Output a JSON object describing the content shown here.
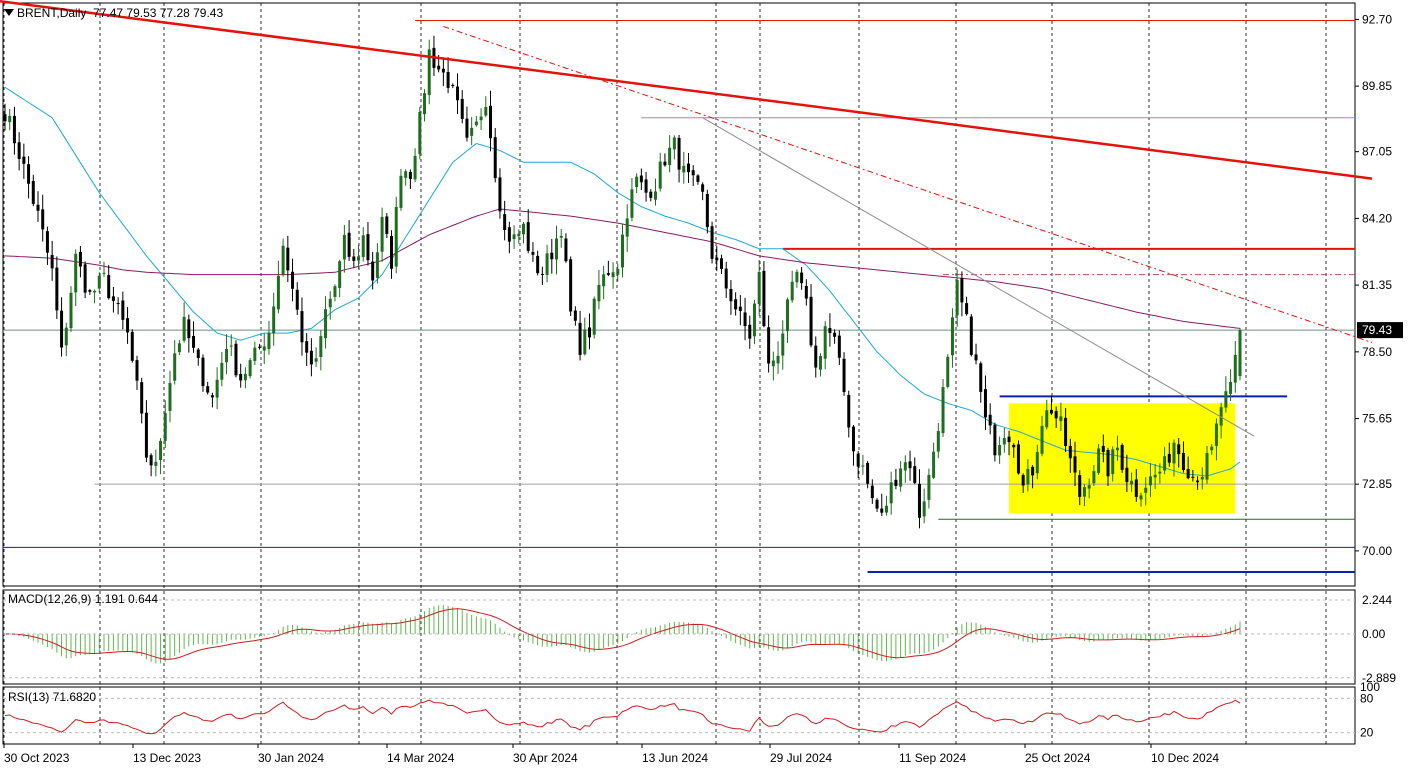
{
  "header": {
    "symbol": "BRENT",
    "timeframe": "Daily",
    "ohlc": "77.47 79.53 77.28 79.43",
    "caret_icon": "dropdown-triangle-icon"
  },
  "macd_header": "MACD(12,26,9) 1.191 0.644",
  "rsi_header": "RSI(13) 71.6820",
  "colors": {
    "background": "#ffffff",
    "bull_candle": "#1f6e1f",
    "bear_candle": "#000000",
    "sma50": "#1fa9d6",
    "sma200": "#8b1a6b",
    "trendline_red": "#e3120b",
    "support_blue": "#0a23a8",
    "consolidation_box": "#ffff00",
    "macd_hist": "#5fb84a",
    "macd_signal": "#cc1f1f",
    "rsi_line": "#cc1f1f",
    "price_tag_bg": "#000000",
    "price_tag_text": "#ffffff",
    "grid": "#000000"
  },
  "chart_data": [
    {
      "type": "candlestick",
      "name": "price",
      "ylim": [
        68.5,
        93.4
      ],
      "price_axis_ticks": [
        "92.70",
        "89.85",
        "87.05",
        "84.20",
        "81.35",
        "78.50",
        "75.65",
        "72.85",
        "70.00"
      ],
      "current_price_label": "79.43",
      "x_tick_labels": [
        "30 Oct 2023",
        "13 Dec 2023",
        "30 Jan 2024",
        "14 Mar 2024",
        "30 Apr 2024",
        "13 Jun 2024",
        "29 Jul 2024",
        "11 Sep 2024",
        "25 Oct 2024",
        "10 Dec 2024"
      ],
      "close_anchors": [
        [
          0,
          88.8
        ],
        [
          3,
          87.0
        ],
        [
          7,
          84.3
        ],
        [
          10,
          81.9
        ],
        [
          12,
          78.4
        ],
        [
          15,
          82.5
        ],
        [
          18,
          80.9
        ],
        [
          21,
          81.6
        ],
        [
          24,
          80.2
        ],
        [
          26,
          79.2
        ],
        [
          28,
          76.9
        ],
        [
          30,
          74.1
        ],
        [
          32,
          73.5
        ],
        [
          34,
          76.2
        ],
        [
          36,
          78.5
        ],
        [
          38,
          79.6
        ],
        [
          41,
          77.9
        ],
        [
          44,
          76.5
        ],
        [
          47,
          78.9
        ],
        [
          50,
          77.4
        ],
        [
          53,
          78.3
        ],
        [
          56,
          79.4
        ],
        [
          59,
          83.1
        ],
        [
          62,
          80.2
        ],
        [
          64,
          78.1
        ],
        [
          66,
          77.9
        ],
        [
          68,
          80.2
        ],
        [
          70,
          81.3
        ],
        [
          72,
          83.1
        ],
        [
          74,
          82.2
        ],
        [
          76,
          83.4
        ],
        [
          78,
          81.7
        ],
        [
          80,
          84.0
        ],
        [
          82,
          82.4
        ],
        [
          84,
          86.4
        ],
        [
          86,
          86.2
        ],
        [
          88,
          88.3
        ],
        [
          90,
          91.3
        ],
        [
          92,
          90.6
        ],
        [
          94,
          90.1
        ],
        [
          96,
          88.9
        ],
        [
          98,
          87.3
        ],
        [
          100,
          88.1
        ],
        [
          102,
          89.4
        ],
        [
          104,
          86.3
        ],
        [
          106,
          83.6
        ],
        [
          108,
          83.3
        ],
        [
          110,
          83.8
        ],
        [
          112,
          82.3
        ],
        [
          114,
          81.9
        ],
        [
          116,
          82.8
        ],
        [
          118,
          83.9
        ],
        [
          120,
          80.1
        ],
        [
          122,
          78.8
        ],
        [
          124,
          79.4
        ],
        [
          126,
          81.3
        ],
        [
          128,
          82.0
        ],
        [
          130,
          82.3
        ],
        [
          132,
          84.6
        ],
        [
          134,
          85.8
        ],
        [
          136,
          85.3
        ],
        [
          138,
          85.7
        ],
        [
          140,
          86.8
        ],
        [
          142,
          87.3
        ],
        [
          144,
          86.1
        ],
        [
          146,
          85.6
        ],
        [
          148,
          85.1
        ],
        [
          150,
          82.7
        ],
        [
          152,
          81.7
        ],
        [
          154,
          80.9
        ],
        [
          156,
          79.9
        ],
        [
          158,
          79.2
        ],
        [
          160,
          81.7
        ],
        [
          162,
          77.8
        ],
        [
          164,
          78.6
        ],
        [
          166,
          80.3
        ],
        [
          168,
          81.8
        ],
        [
          170,
          80.4
        ],
        [
          172,
          77.7
        ],
        [
          174,
          79.6
        ],
        [
          176,
          78.9
        ],
        [
          178,
          76.8
        ],
        [
          180,
          74.3
        ],
        [
          182,
          73.5
        ],
        [
          184,
          72.2
        ],
        [
          186,
          71.4
        ],
        [
          188,
          72.7
        ],
        [
          190,
          73.7
        ],
        [
          192,
          73.8
        ],
        [
          194,
          71.6
        ],
        [
          196,
          73.1
        ],
        [
          198,
          75.5
        ],
        [
          200,
          78.0
        ],
        [
          202,
          81.2
        ],
        [
          204,
          79.7
        ],
        [
          206,
          77.9
        ],
        [
          208,
          75.5
        ],
        [
          210,
          74.5
        ],
        [
          212,
          75.2
        ],
        [
          214,
          74.8
        ],
        [
          216,
          72.7
        ],
        [
          218,
          73.5
        ],
        [
          220,
          75.6
        ],
        [
          222,
          76.1
        ],
        [
          224,
          75.3
        ],
        [
          226,
          73.8
        ],
        [
          228,
          72.4
        ],
        [
          230,
          73.2
        ],
        [
          232,
          74.1
        ],
        [
          234,
          73.5
        ],
        [
          236,
          74.4
        ],
        [
          238,
          73.2
        ],
        [
          240,
          72.6
        ],
        [
          242,
          72.9
        ],
        [
          244,
          73.2
        ],
        [
          246,
          73.6
        ],
        [
          248,
          74.7
        ],
        [
          250,
          73.9
        ],
        [
          252,
          73.2
        ],
        [
          254,
          73.4
        ],
        [
          256,
          74.2
        ],
        [
          258,
          76.2
        ],
        [
          260,
          76.8
        ],
        [
          262,
          79.4
        ]
      ],
      "sma50_anchors": [
        [
          0,
          89.8
        ],
        [
          10,
          88.5
        ],
        [
          20,
          85.3
        ],
        [
          30,
          82.6
        ],
        [
          40,
          80.2
        ],
        [
          45,
          79.3
        ],
        [
          50,
          79.0
        ],
        [
          55,
          79.3
        ],
        [
          60,
          79.3
        ],
        [
          65,
          79.5
        ],
        [
          70,
          80.3
        ],
        [
          75,
          80.8
        ],
        [
          80,
          81.8
        ],
        [
          85,
          83.4
        ],
        [
          90,
          85.0
        ],
        [
          95,
          86.6
        ],
        [
          100,
          87.4
        ],
        [
          105,
          87.1
        ],
        [
          110,
          86.6
        ],
        [
          115,
          86.6
        ],
        [
          120,
          86.6
        ],
        [
          125,
          86.1
        ],
        [
          130,
          85.3
        ],
        [
          135,
          84.7
        ],
        [
          140,
          84.3
        ],
        [
          145,
          84.0
        ],
        [
          150,
          83.6
        ],
        [
          155,
          83.3
        ],
        [
          160,
          82.9
        ],
        [
          165,
          82.9
        ],
        [
          170,
          82.2
        ],
        [
          175,
          81.1
        ],
        [
          180,
          79.8
        ],
        [
          185,
          78.5
        ],
        [
          190,
          77.5
        ],
        [
          195,
          76.7
        ],
        [
          200,
          76.3
        ],
        [
          205,
          76.0
        ],
        [
          210,
          75.4
        ],
        [
          215,
          75.1
        ],
        [
          220,
          74.7
        ],
        [
          225,
          74.3
        ],
        [
          230,
          74.2
        ],
        [
          235,
          74.1
        ],
        [
          240,
          73.9
        ],
        [
          245,
          73.6
        ],
        [
          250,
          73.3
        ],
        [
          255,
          73.2
        ],
        [
          260,
          73.5
        ],
        [
          262,
          73.8
        ]
      ],
      "sma200_anchors": [
        [
          0,
          82.6
        ],
        [
          10,
          82.5
        ],
        [
          20,
          82.2
        ],
        [
          25,
          82.0
        ],
        [
          30,
          81.9
        ],
        [
          40,
          81.8
        ],
        [
          50,
          81.8
        ],
        [
          60,
          81.8
        ],
        [
          70,
          81.9
        ],
        [
          80,
          82.4
        ],
        [
          90,
          83.5
        ],
        [
          100,
          84.3
        ],
        [
          105,
          84.6
        ],
        [
          110,
          84.5
        ],
        [
          115,
          84.4
        ],
        [
          120,
          84.3
        ],
        [
          130,
          84.0
        ],
        [
          140,
          83.6
        ],
        [
          150,
          83.2
        ],
        [
          160,
          82.6
        ],
        [
          170,
          82.3
        ],
        [
          180,
          82.1
        ],
        [
          190,
          81.9
        ],
        [
          200,
          81.7
        ],
        [
          210,
          81.5
        ],
        [
          220,
          81.2
        ],
        [
          230,
          80.7
        ],
        [
          240,
          80.2
        ],
        [
          250,
          79.8
        ],
        [
          262,
          79.5
        ]
      ],
      "annotations": [
        {
          "kind": "line",
          "name": "major-downtrend-line",
          "color": "#e3120b",
          "from": [
            -2,
            93.5
          ],
          "to": [
            290,
            85.9
          ]
        },
        {
          "kind": "line",
          "name": "dashed-downtrend-line",
          "color": "#e3120b",
          "dash": true,
          "from": [
            93,
            92.4
          ],
          "to": [
            290,
            78.9
          ]
        },
        {
          "kind": "line",
          "name": "grey-trendline",
          "color": "#8c8c8c",
          "from": [
            148,
            88.5
          ],
          "to": [
            265,
            74.9
          ]
        },
        {
          "kind": "hline",
          "name": "resistance-92-7",
          "color": "#e3120b",
          "y": 92.65,
          "from": 87,
          "to": 290
        },
        {
          "kind": "hline",
          "name": "resistance-88-5",
          "color": "#d06bd0",
          "y": 88.5,
          "from": 135,
          "to": 290
        },
        {
          "kind": "hline",
          "name": "resistance-83",
          "color": "#e3120b",
          "y": 82.9,
          "from": 165,
          "to": 290,
          "width": 2
        },
        {
          "kind": "hline",
          "name": "resistance-81-8",
          "color": "#b05050",
          "dash": true,
          "y": 81.8,
          "from": 199,
          "to": 290
        },
        {
          "kind": "hline",
          "name": "current-price-line",
          "color": "#6d8f80",
          "y": 79.43,
          "from": -2,
          "to": 290
        },
        {
          "kind": "hline",
          "name": "support-72-85",
          "color": "#a0a0a0",
          "y": 72.85,
          "from": 19,
          "to": 290
        },
        {
          "kind": "hline",
          "name": "support-71-5",
          "color": "#1f6e1f",
          "y": 71.35,
          "from": 198,
          "to": 290
        },
        {
          "kind": "hline",
          "name": "support-70",
          "color": "#0a23a8",
          "y": 70.15,
          "from": -2,
          "to": 290
        },
        {
          "kind": "hline",
          "name": "support-69",
          "color": "#0a23a8",
          "y": 69.1,
          "from": 183,
          "to": 290,
          "width": 2
        },
        {
          "kind": "hline",
          "name": "breakout-level",
          "color": "#0a23a8",
          "y": 76.6,
          "from": 211,
          "to": 272,
          "width": 2
        },
        {
          "kind": "rect",
          "name": "consolidation-box",
          "color": "#ffff00",
          "x": [
            213,
            261
          ],
          "y": [
            71.6,
            76.3
          ]
        }
      ]
    },
    {
      "type": "bar",
      "name": "MACD(12,26,9)",
      "ylim": [
        -3.3,
        2.9
      ],
      "axis_ticks": [
        "2.244",
        "0.00",
        "-2.889"
      ],
      "last_values": {
        "macd": 1.191,
        "signal": 0.644
      }
    },
    {
      "type": "line",
      "name": "RSI(13)",
      "ylim": [
        0,
        100
      ],
      "axis_ticks": [
        "100",
        "80",
        "20"
      ],
      "last_value": 71.682
    }
  ]
}
